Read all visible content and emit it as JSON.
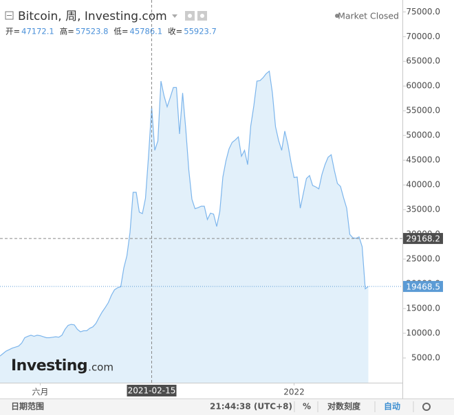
{
  "chart_data": {
    "type": "area",
    "title": "Bitcoin, 周, Investing.com",
    "status": "Market Closed",
    "ohlc": [
      {
        "name": "开=",
        "value": 47172.1
      },
      {
        "name": "高=",
        "value": 57523.8
      },
      {
        "name": "低=",
        "value": 45786.1
      },
      {
        "name": "收=",
        "value": 55923.7
      }
    ],
    "values": [
      5400,
      5900,
      6400,
      6700,
      7000,
      7200,
      7400,
      8000,
      9100,
      9400,
      9600,
      9400,
      9600,
      9500,
      9300,
      9100,
      9100,
      9200,
      9300,
      9200,
      9600,
      10800,
      11600,
      11800,
      11700,
      10800,
      10300,
      10500,
      10500,
      11000,
      11300,
      12000,
      13200,
      14300,
      15200,
      16200,
      17700,
      18800,
      19200,
      19400,
      23200,
      25700,
      30400,
      38500,
      38500,
      34500,
      34200,
      37300,
      46000,
      55800,
      47000,
      48900,
      61000,
      58000,
      55800,
      57700,
      59700,
      59700,
      50300,
      58600,
      51400,
      43000,
      37100,
      35200,
      35400,
      35700,
      35700,
      33000,
      34300,
      34100,
      31600,
      34600,
      41600,
      44900,
      47300,
      48600,
      49100,
      49700,
      45800,
      47000,
      44100,
      51900,
      56000,
      61000,
      61100,
      61700,
      62500,
      63000,
      58600,
      51800,
      49000,
      47000,
      50900,
      48200,
      44600,
      41500,
      41600,
      35300,
      38300,
      41300,
      41900,
      39900,
      39600,
      39200,
      42100,
      44100,
      45600,
      46100,
      43000,
      40300,
      39700,
      37400,
      35300,
      30000,
      29300,
      29200,
      29500,
      27500,
      19000,
      19468.5
    ],
    "color": "#7cb5ec",
    "fill": "#e2f0fa",
    "last_color": "#5b9bd5",
    "xlim": [
      0,
      130
    ],
    "xticks": [
      {
        "value": 13,
        "label": "六月"
      },
      {
        "value": 95,
        "label": "2022"
      }
    ],
    "ylim": [
      0,
      77400
    ],
    "yticks": [
      {
        "value": 5000,
        "label": "5000.0"
      },
      {
        "value": 10000,
        "label": "10000.0"
      },
      {
        "value": 15000,
        "label": "15000.0"
      },
      {
        "value": 20000,
        "label": "20000.0"
      },
      {
        "value": 25000,
        "label": "25000.0"
      },
      {
        "value": 30000,
        "label": "30000.0"
      },
      {
        "value": 35000,
        "label": "35000.0"
      },
      {
        "value": 40000,
        "label": "40000.0"
      },
      {
        "value": 45000,
        "label": "45000.0"
      },
      {
        "value": 50000,
        "label": "50000.0"
      },
      {
        "value": 55000,
        "label": "55000.0"
      },
      {
        "value": 60000,
        "label": "60000.0"
      },
      {
        "value": 65000,
        "label": "65000.0"
      },
      {
        "value": 70000,
        "label": "70000.0"
      },
      {
        "value": 75000,
        "label": "75000.0"
      }
    ],
    "crosshair": {
      "index": 49,
      "label": "2021-02-15",
      "price": 29168.2
    },
    "logo": [
      "Investing",
      ".com"
    ],
    "toolbar": [
      "日期范围",
      "21:44:38 (UTC+8)",
      "%",
      "对数刻度",
      "自动"
    ]
  }
}
